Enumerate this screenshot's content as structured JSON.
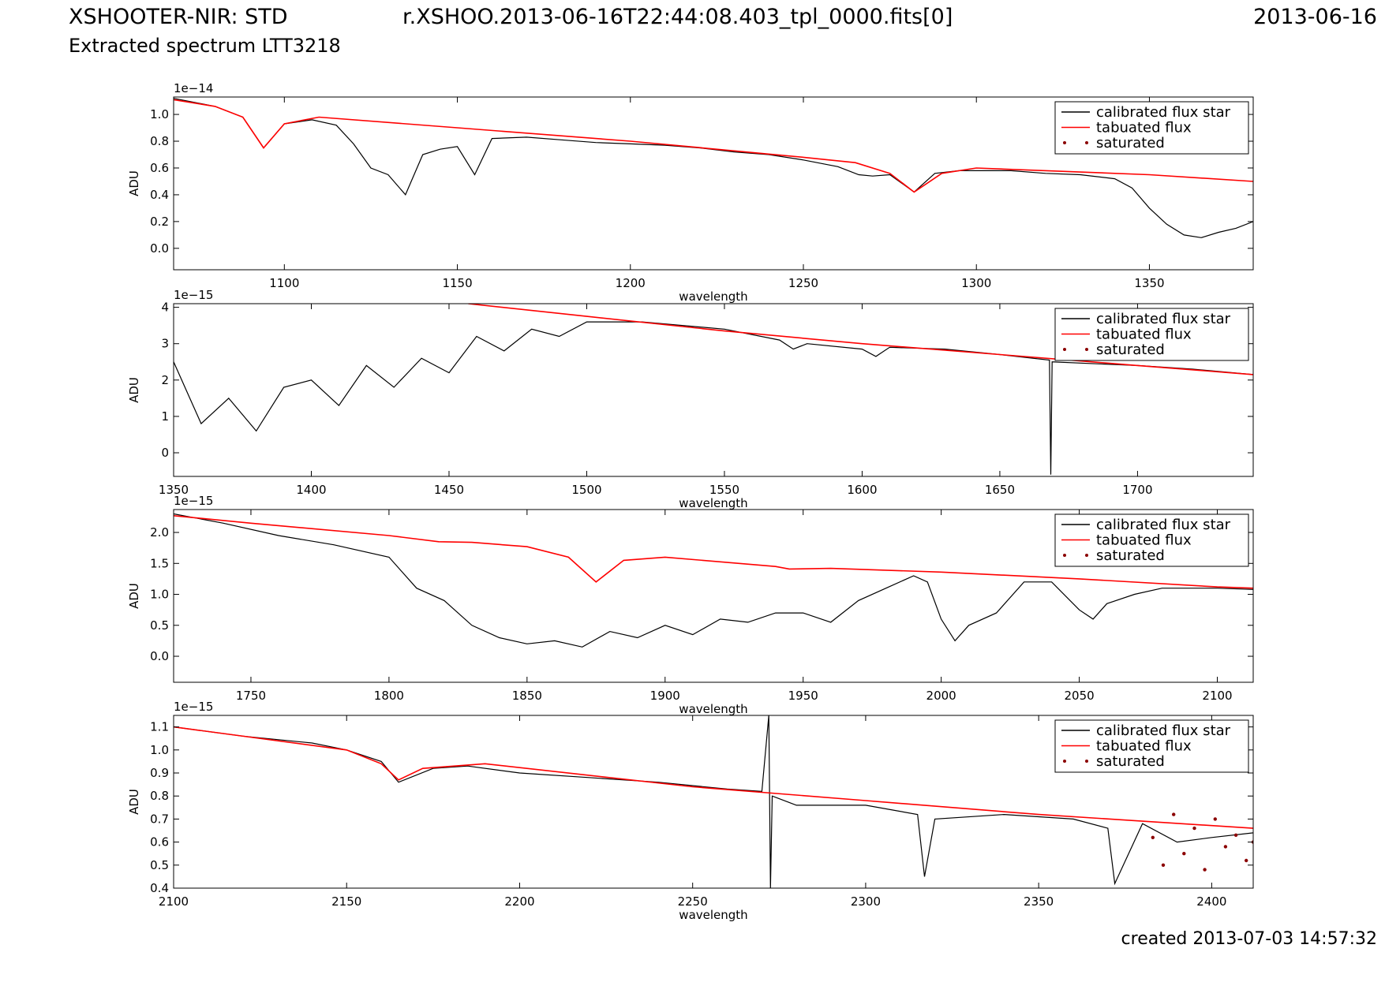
{
  "header": {
    "title": "XSHOOTER-NIR: STD",
    "file": "r.XSHOO.2013-06-16T22:44:08.403_tpl_0000.fits[0]",
    "date": "2013-06-16",
    "subtitle": "Extracted spectrum LTT3218"
  },
  "footer": {
    "created": "created 2013-07-03 14:57:32"
  },
  "colors": {
    "star": "#000000",
    "tabulated": "#ff0000",
    "saturated": "#8b0000"
  },
  "chart_data": [
    {
      "type": "line",
      "xlabel": "wavelength",
      "ylabel": "ADU",
      "offset_label": "1e−14",
      "xlim": [
        1068,
        1380
      ],
      "ylim": [
        -0.16,
        1.13
      ],
      "xticks": [
        1100,
        1150,
        1200,
        1250,
        1300,
        1350
      ],
      "xtick_labels": [
        "1100",
        "1150",
        "1200",
        "1250",
        "1300",
        "1350"
      ],
      "yticks": [
        0.0,
        0.2,
        0.4,
        0.6,
        0.8,
        1.0
      ],
      "ytick_labels": [
        "0.0",
        "0.2",
        "0.4",
        "0.6",
        "0.8",
        "1.0"
      ],
      "legend": {
        "position": "top-right",
        "entries": [
          "calibrated flux star",
          "tabuated flux",
          "saturated"
        ]
      },
      "series": [
        {
          "name": "calibrated flux star",
          "x": [
            1068,
            1080,
            1088,
            1094,
            1100,
            1108,
            1115,
            1120,
            1125,
            1130,
            1135,
            1140,
            1145,
            1150,
            1155,
            1160,
            1170,
            1180,
            1190,
            1200,
            1210,
            1220,
            1230,
            1240,
            1250,
            1260,
            1266,
            1270,
            1275,
            1282,
            1288,
            1295,
            1300,
            1310,
            1320,
            1330,
            1340,
            1345,
            1350,
            1355,
            1360,
            1365,
            1370,
            1375,
            1380
          ],
          "y": [
            1.12,
            1.06,
            0.98,
            0.75,
            0.93,
            0.96,
            0.92,
            0.78,
            0.6,
            0.55,
            0.4,
            0.7,
            0.74,
            0.76,
            0.55,
            0.82,
            0.83,
            0.81,
            0.79,
            0.78,
            0.77,
            0.75,
            0.72,
            0.7,
            0.66,
            0.61,
            0.55,
            0.54,
            0.55,
            0.42,
            0.56,
            0.58,
            0.58,
            0.58,
            0.56,
            0.55,
            0.52,
            0.45,
            0.3,
            0.18,
            0.1,
            0.08,
            0.12,
            0.15,
            0.2
          ]
        },
        {
          "name": "tabuated flux",
          "x": [
            1068,
            1080,
            1088,
            1094,
            1100,
            1110,
            1150,
            1200,
            1250,
            1265,
            1275,
            1282,
            1290,
            1300,
            1350,
            1380
          ],
          "y": [
            1.11,
            1.06,
            0.98,
            0.75,
            0.93,
            0.98,
            0.9,
            0.8,
            0.68,
            0.64,
            0.56,
            0.42,
            0.56,
            0.6,
            0.55,
            0.5
          ]
        }
      ]
    },
    {
      "type": "line",
      "xlabel": "wavelength",
      "ylabel": "ADU",
      "offset_label": "1e−15",
      "xlim": [
        1350,
        1742
      ],
      "ylim": [
        -0.65,
        4.1
      ],
      "xticks": [
        1350,
        1400,
        1450,
        1500,
        1550,
        1600,
        1650,
        1700
      ],
      "xtick_labels": [
        "1350",
        "1400",
        "1450",
        "1500",
        "1550",
        "1600",
        "1650",
        "1700"
      ],
      "yticks": [
        0,
        1,
        2,
        3,
        4
      ],
      "ytick_labels": [
        "0",
        "1",
        "2",
        "3",
        "4"
      ],
      "legend": {
        "position": "top-right",
        "entries": [
          "calibrated flux star",
          "tabuated flux",
          "saturated"
        ]
      },
      "series": [
        {
          "name": "calibrated flux star",
          "x": [
            1350,
            1360,
            1370,
            1380,
            1390,
            1400,
            1410,
            1420,
            1430,
            1440,
            1450,
            1460,
            1470,
            1480,
            1490,
            1500,
            1520,
            1550,
            1570,
            1575,
            1580,
            1600,
            1605,
            1610,
            1630,
            1650,
            1668,
            1668.5,
            1669,
            1700,
            1720,
            1742
          ],
          "y": [
            2.5,
            0.8,
            1.5,
            0.6,
            1.8,
            2.0,
            1.3,
            2.4,
            1.8,
            2.6,
            2.2,
            3.2,
            2.8,
            3.4,
            3.2,
            3.6,
            3.6,
            3.4,
            3.1,
            2.85,
            3.0,
            2.85,
            2.65,
            2.9,
            2.85,
            2.7,
            2.55,
            -0.6,
            2.5,
            2.4,
            2.3,
            2.15
          ]
        },
        {
          "name": "tabuated flux",
          "x": [
            1457,
            1500,
            1550,
            1600,
            1650,
            1700,
            1742
          ],
          "y": [
            4.1,
            3.75,
            3.35,
            3.0,
            2.7,
            2.4,
            2.15
          ]
        }
      ]
    },
    {
      "type": "line",
      "xlabel": "wavelength",
      "ylabel": "ADU",
      "offset_label": "1e−15",
      "xlim": [
        1722,
        2113
      ],
      "ylim": [
        -0.42,
        2.37
      ],
      "xticks": [
        1750,
        1800,
        1850,
        1900,
        1950,
        2000,
        2050,
        2100
      ],
      "xtick_labels": [
        "1750",
        "1800",
        "1850",
        "1900",
        "1950",
        "2000",
        "2050",
        "2100"
      ],
      "yticks": [
        0.0,
        0.5,
        1.0,
        1.5,
        2.0
      ],
      "ytick_labels": [
        "0.0",
        "0.5",
        "1.0",
        "1.5",
        "2.0"
      ],
      "legend": {
        "position": "top-right",
        "entries": [
          "calibrated flux star",
          "tabuated flux",
          "saturated"
        ]
      },
      "series": [
        {
          "name": "calibrated flux star",
          "x": [
            1722,
            1740,
            1760,
            1780,
            1800,
            1810,
            1820,
            1830,
            1840,
            1850,
            1860,
            1870,
            1880,
            1890,
            1900,
            1910,
            1920,
            1930,
            1940,
            1950,
            1960,
            1970,
            1980,
            1990,
            1995,
            2000,
            2005,
            2010,
            2020,
            2030,
            2040,
            2050,
            2055,
            2060,
            2070,
            2080,
            2090,
            2100,
            2113
          ],
          "y": [
            2.3,
            2.15,
            1.95,
            1.8,
            1.6,
            1.1,
            0.9,
            0.5,
            0.3,
            0.2,
            0.25,
            0.15,
            0.4,
            0.3,
            0.5,
            0.35,
            0.6,
            0.55,
            0.7,
            0.7,
            0.55,
            0.9,
            1.1,
            1.3,
            1.2,
            0.6,
            0.25,
            0.5,
            0.7,
            1.2,
            1.2,
            0.75,
            0.6,
            0.85,
            1.0,
            1.1,
            1.1,
            1.1,
            1.08
          ]
        },
        {
          "name": "tabuated flux",
          "x": [
            1722,
            1750,
            1800,
            1818,
            1830,
            1850,
            1865,
            1875,
            1885,
            1900,
            1940,
            1945,
            1960,
            2000,
            2050,
            2100,
            2113
          ],
          "y": [
            2.27,
            2.15,
            1.95,
            1.85,
            1.84,
            1.77,
            1.6,
            1.2,
            1.55,
            1.6,
            1.45,
            1.41,
            1.42,
            1.36,
            1.25,
            1.12,
            1.1
          ]
        }
      ]
    },
    {
      "type": "line",
      "xlabel": "wavelength",
      "ylabel": "ADU",
      "offset_label": "1e−15",
      "xlim": [
        2100,
        2412
      ],
      "ylim": [
        0.4,
        1.15
      ],
      "xticks": [
        2100,
        2150,
        2200,
        2250,
        2300,
        2350,
        2400
      ],
      "xtick_labels": [
        "2100",
        "2150",
        "2200",
        "2250",
        "2300",
        "2350",
        "2400"
      ],
      "yticks": [
        0.4,
        0.5,
        0.6,
        0.7,
        0.8,
        0.9,
        1.0,
        1.1
      ],
      "ytick_labels": [
        "0.4",
        "0.5",
        "0.6",
        "0.7",
        "0.8",
        "0.9",
        "1.0",
        "1.1"
      ],
      "legend": {
        "position": "top-right",
        "entries": [
          "calibrated flux star",
          "tabuated flux",
          "saturated"
        ]
      },
      "series": [
        {
          "name": "calibrated flux star",
          "x": [
            2100,
            2120,
            2140,
            2150,
            2160,
            2165,
            2175,
            2185,
            2200,
            2220,
            2240,
            2260,
            2270,
            2272,
            2272.5,
            2273,
            2280,
            2300,
            2315,
            2317,
            2320,
            2340,
            2360,
            2370,
            2372,
            2380,
            2390,
            2400,
            2412
          ],
          "y": [
            1.1,
            1.06,
            1.03,
            1.0,
            0.95,
            0.86,
            0.92,
            0.93,
            0.9,
            0.88,
            0.86,
            0.83,
            0.82,
            1.15,
            0.4,
            0.8,
            0.76,
            0.76,
            0.72,
            0.45,
            0.7,
            0.72,
            0.7,
            0.66,
            0.42,
            0.68,
            0.6,
            0.62,
            0.64
          ]
        },
        {
          "name": "tabuated flux",
          "x": [
            2100,
            2150,
            2160,
            2165,
            2172,
            2190,
            2250,
            2300,
            2350,
            2412
          ],
          "y": [
            1.1,
            1.0,
            0.94,
            0.87,
            0.92,
            0.94,
            0.84,
            0.78,
            0.72,
            0.66
          ]
        },
        {
          "name": "saturated",
          "x": [
            2383,
            2386,
            2389,
            2392,
            2395,
            2398,
            2401,
            2404,
            2407,
            2410,
            2412
          ],
          "y": [
            0.62,
            0.5,
            0.72,
            0.55,
            0.66,
            0.48,
            0.7,
            0.58,
            0.63,
            0.52,
            0.6
          ]
        }
      ]
    }
  ]
}
